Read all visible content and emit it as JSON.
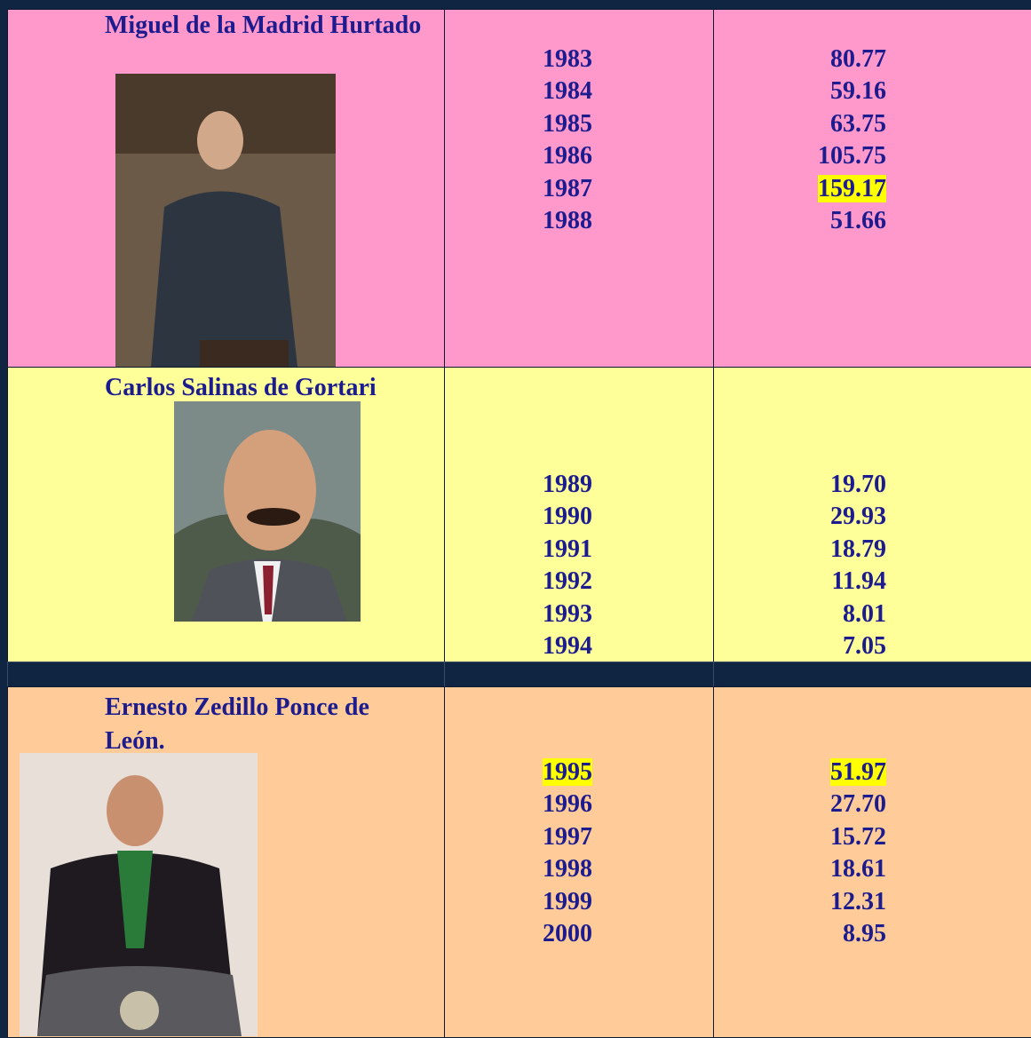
{
  "table": {
    "rows": [
      {
        "name": "Miguel de la Madrid Hurtado",
        "years": [
          "1983",
          "1984",
          "1985",
          "1986",
          "1987",
          "1988"
        ],
        "values": [
          "80.77",
          "59.16",
          "63.75",
          "105.75",
          "159.17",
          "51.66"
        ]
      },
      {
        "name": "Carlos Salinas de Gortari",
        "years": [
          "1989",
          "1990",
          "1991",
          "1992",
          "1993",
          "1994"
        ],
        "values": [
          "19.70",
          "29.93",
          "18.79",
          "11.94",
          "8.01",
          "7.05"
        ]
      },
      {
        "name": "Ernesto Zedillo Ponce de León.",
        "years": [
          "1995",
          "1996",
          "1997",
          "1998",
          "1999",
          "2000"
        ],
        "values": [
          "51.97",
          "27.70",
          "15.72",
          "18.61",
          "12.31",
          "8.95"
        ]
      }
    ]
  }
}
